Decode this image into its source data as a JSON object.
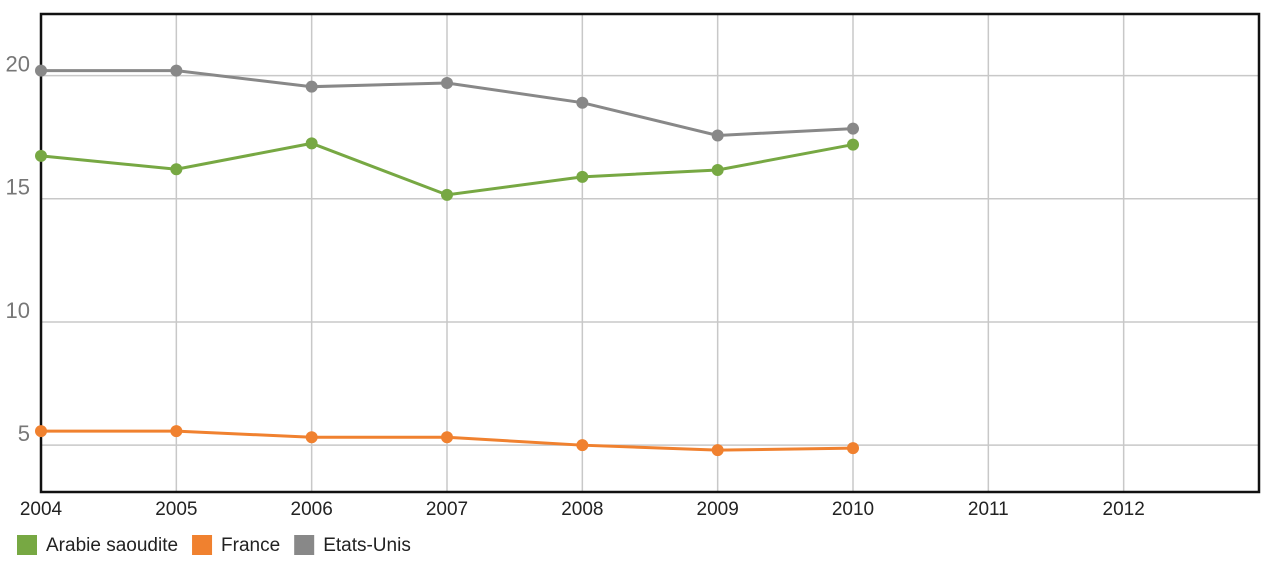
{
  "chart_data": {
    "type": "line",
    "x": [
      2004,
      2005,
      2006,
      2007,
      2008,
      2009,
      2010
    ],
    "series": [
      {
        "name": "Arabie saoudite",
        "color": "#77a843",
        "values": [
          16.74,
          16.2,
          17.25,
          15.16,
          15.89,
          16.17,
          17.2
        ]
      },
      {
        "name": "France",
        "color": "#f0812f",
        "values": [
          5.57,
          5.57,
          5.32,
          5.32,
          5.0,
          4.8,
          4.88
        ]
      },
      {
        "name": "Etats-Unis",
        "color": "#888888",
        "values": [
          20.2,
          20.2,
          19.55,
          19.7,
          18.9,
          17.57,
          17.85
        ]
      }
    ],
    "xlim": [
      2004,
      2013
    ],
    "xticks": [
      2004,
      2005,
      2006,
      2007,
      2008,
      2009,
      2010,
      2011,
      2012
    ],
    "ylim": [
      3.1,
      22.5
    ],
    "yticks": [
      5,
      10,
      15,
      20
    ],
    "grid": true,
    "legend": "bottom"
  }
}
